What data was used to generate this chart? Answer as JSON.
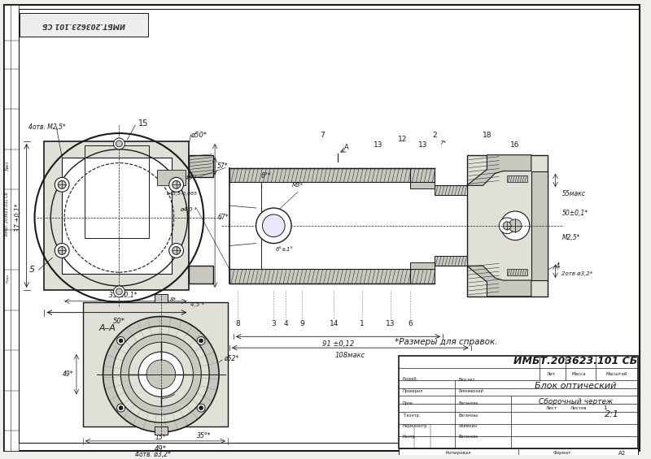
{
  "title_block": {
    "document_number": "ИМБТ.203623.101 СБ",
    "name": "Блок оптический",
    "type": "Сборочный чертеж",
    "scale": "2:1",
    "format": "А2",
    "sheet": "1"
  },
  "stamp_text": "ИМБТ.203623.101 СБ",
  "note": "*Размеры для справок.",
  "section_label": "А–А",
  "bg": "#f0f0eb",
  "dc": "#1a1a1a",
  "hatch_gray": "#aaaaaa",
  "fill_light": "#e0e0d8",
  "fill_mid": "#c8c8c0",
  "fill_dark": "#b0b0a8",
  "white": "#ffffff"
}
